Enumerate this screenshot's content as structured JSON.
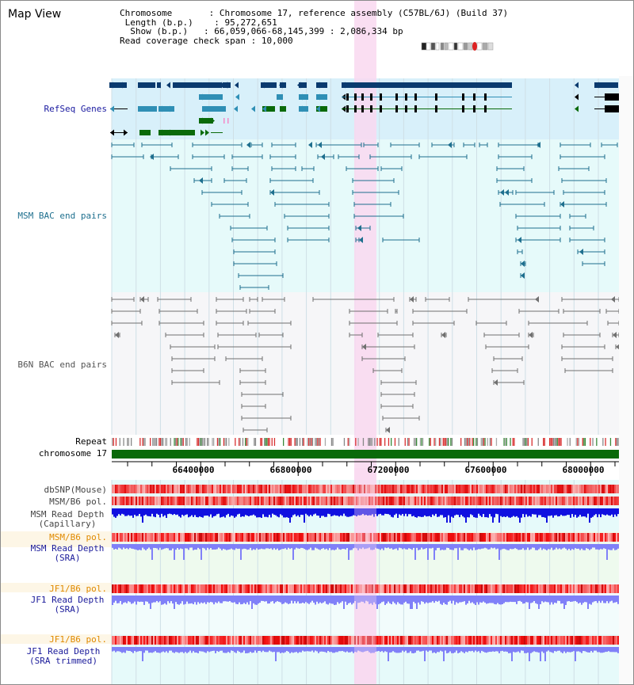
{
  "view_title": "Map View",
  "info": {
    "chromosome_key": "Chromosome",
    "chromosome_val": "Chromosome 17, reference assembly (C57BL/6J) (Build 37)",
    "length_key": "Length (b.p.)",
    "length_val": "95,272,651",
    "show_key": "Show (b.p.)",
    "show_val": "66,059,066-68,145,399 : 2,086,334 bp",
    "span_key": "Read coverage check span",
    "span_val": "10,000"
  },
  "tracks": {
    "refseq": "RefSeq Genes",
    "msm_bac": "MSM BAC end pairs",
    "b6n_bac": "B6N BAC end pairs",
    "repeat": "Repeat",
    "chromosome": "chromosome 17",
    "dbsnp": "dbSNP(Mouse)",
    "msm_b6_pol_a": "MSM/B6 pol.",
    "msm_depth_cap_1": "MSM Read Depth",
    "msm_depth_cap_2": "(Capillary)",
    "msm_b6_pol_b": "MSM/B6 pol.",
    "msm_depth_sra_1": "MSM Read Depth",
    "msm_depth_sra_2": "(SRA)",
    "jf1_pol_a": "JF1/B6 pol.",
    "jf1_depth_sra_1": "JF1 Read Depth",
    "jf1_depth_sra_2": "(SRA)",
    "jf1_pol_b": "JF1/B6 pol.",
    "jf1_depth_trim_1": "JF1 Read Depth",
    "jf1_depth_trim_2": "(SRA trimmed)"
  },
  "axis_ticks": [
    "66400000",
    "66800000",
    "67200000",
    "67600000",
    "68000000"
  ],
  "colors": {
    "refseq_bg": "#d8f0fa",
    "bac_bg": "#e6fafa",
    "b6n_bg": "#f6f6f8",
    "highlight": "#f9d8f0",
    "gene_navy": "#0a3a6e",
    "gene_teal": "#2f8fb5",
    "gene_green": "#0a6a0a",
    "msm_line": "#1e6f8e",
    "b6n_line": "#707070",
    "snp_red": "#e83030",
    "depth_blue": "#1010e0",
    "depth_light": "#8080f8",
    "chrom_green": "#0a6a0a",
    "msm_label": "#1e6f8e",
    "refseq_label": "#1a1aa0",
    "orange_label": "#e08a00",
    "navy_label": "#1a1a9a"
  }
}
